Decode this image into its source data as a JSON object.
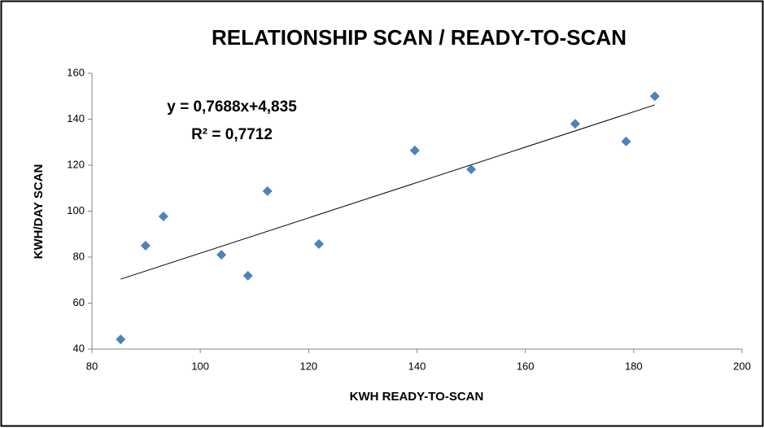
{
  "chart_data": {
    "type": "scatter",
    "title": "RELATIONSHIP SCAN / READY-TO-SCAN",
    "x_label": "KWH READY-TO-SCAN",
    "y_label": "KWH/DAY SCAN",
    "x": [
      85.3,
      89.9,
      93.2,
      103.9,
      108.8,
      112.4,
      121.9,
      139.6,
      150,
      169.2,
      178.6,
      183.9
    ],
    "series": [
      {
        "name": "KWH/DAY SCAN",
        "color": "#4f81bd",
        "values": [
          44.2,
          85,
          97.7,
          81,
          71.9,
          108.7,
          85.7,
          126.4,
          118.2,
          138,
          130.3,
          150
        ]
      }
    ],
    "trendline": {
      "slope": 0.7688,
      "intercept": 4.835,
      "equation": "y = 0,7688x+4,835",
      "r2": "R² = 0,7712"
    },
    "xlim": [
      80,
      200
    ],
    "xticks": [
      80,
      100,
      120,
      140,
      160,
      180,
      200
    ],
    "ylim": [
      40,
      160
    ],
    "yticks": [
      40,
      60,
      80,
      100,
      120,
      140,
      160
    ],
    "grid": false
  }
}
